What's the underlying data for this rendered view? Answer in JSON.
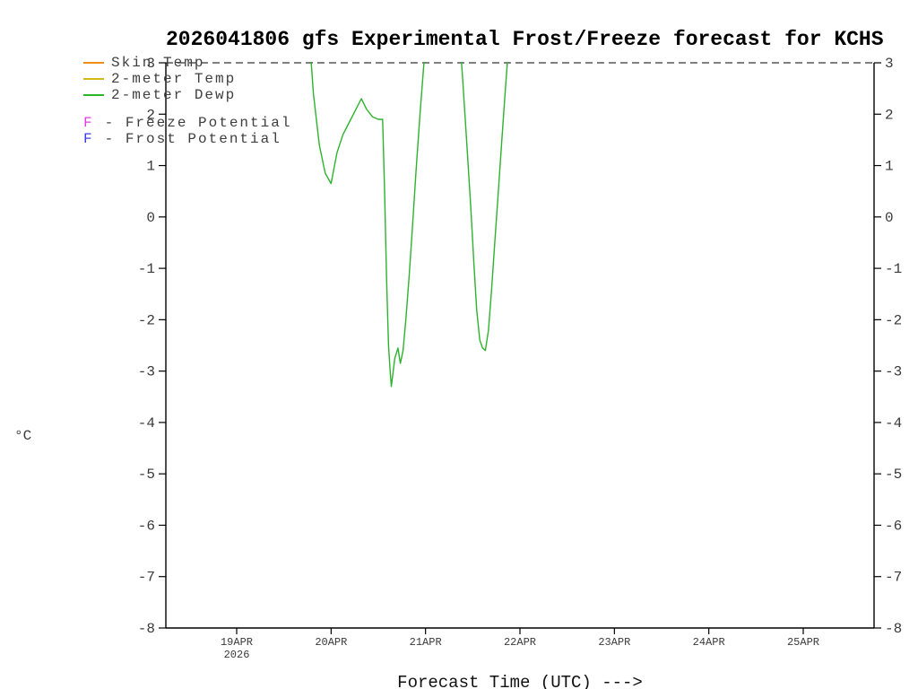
{
  "title": "2026041806 gfs Experimental Frost/Freeze forecast for KCHS",
  "legend": {
    "series": [
      {
        "label": "Skin Temp",
        "color": "#ef8e1f"
      },
      {
        "label": "2-meter Temp",
        "color": "#d3b91c"
      },
      {
        "label": "2-meter Dewp",
        "color": "#2db32d"
      }
    ],
    "potentials": [
      {
        "letter": "F",
        "label": "- Freeze Potential",
        "color": "#e23fe2"
      },
      {
        "letter": "F",
        "label": "- Frost Potential",
        "color": "#3c3ce8"
      }
    ]
  },
  "y_axis": {
    "unit_label": "°C"
  },
  "x_axis": {
    "label": "Forecast Time (UTC) --->"
  },
  "chart_data": {
    "type": "line",
    "title": "2026041806 gfs Experimental Frost/Freeze forecast for KCHS",
    "xlabel": "Forecast Time (UTC) --->",
    "ylabel": "°C",
    "ylim": [
      -8,
      3
    ],
    "y_tick_step": 1,
    "y_ticks": [
      3,
      2,
      1,
      0,
      -1,
      -2,
      -3,
      -4,
      -5,
      -6,
      -7,
      -8
    ],
    "x_axis_time": "hours since 2026-04-18 06 UTC (model run 2026041806)",
    "xlim": [
      0,
      180
    ],
    "x_ticks": [
      {
        "label": "19APR",
        "hour": 18,
        "year": "2026"
      },
      {
        "label": "20APR",
        "hour": 42
      },
      {
        "label": "21APR",
        "hour": 66
      },
      {
        "label": "22APR",
        "hour": 90
      },
      {
        "label": "23APR",
        "hour": 114
      },
      {
        "label": "24APR",
        "hour": 138
      },
      {
        "label": "25APR",
        "hour": 162
      }
    ],
    "grid": "dashed horizontal line at top (y=3) only; solid frame left/right/bottom",
    "legend_position": "top-left",
    "series": [
      {
        "name": "Skin Temp",
        "color": "#ef8e1f",
        "visible": false,
        "points": []
      },
      {
        "name": "2-meter Temp",
        "color": "#d3b91c",
        "visible": false,
        "points": []
      },
      {
        "name": "2-meter Dewp",
        "color": "#2db32d",
        "visible": true,
        "points": [
          [
            36.6,
            3.4
          ],
          [
            37.5,
            2.4
          ],
          [
            39.0,
            1.4
          ],
          [
            40.5,
            0.85
          ],
          [
            42.0,
            0.65
          ],
          [
            43.5,
            1.25
          ],
          [
            45.0,
            1.6
          ],
          [
            47.0,
            1.9
          ],
          [
            49.0,
            2.2
          ],
          [
            49.7,
            2.3
          ],
          [
            51.0,
            2.1
          ],
          [
            52.5,
            1.95
          ],
          [
            54.0,
            1.9
          ],
          [
            55.1,
            1.9
          ],
          [
            55.6,
            0.5
          ],
          [
            56.1,
            -1.2
          ],
          [
            56.6,
            -2.5
          ],
          [
            57.0,
            -3.0
          ],
          [
            57.3,
            -3.3
          ],
          [
            58.2,
            -2.75
          ],
          [
            59.0,
            -2.55
          ],
          [
            59.6,
            -2.85
          ],
          [
            60.3,
            -2.6
          ],
          [
            61.0,
            -2.0
          ],
          [
            61.8,
            -1.2
          ],
          [
            62.6,
            -0.3
          ],
          [
            63.6,
            0.9
          ],
          [
            64.6,
            2.0
          ],
          [
            65.6,
            3.0
          ],
          [
            66.0,
            3.4
          ],
          [
            74.8,
            3.4
          ],
          [
            75.5,
            2.6
          ],
          [
            76.5,
            1.4
          ],
          [
            77.5,
            0.2
          ],
          [
            78.3,
            -0.9
          ],
          [
            79.0,
            -1.8
          ],
          [
            79.8,
            -2.4
          ],
          [
            80.5,
            -2.55
          ],
          [
            81.2,
            -2.6
          ],
          [
            82.0,
            -2.2
          ],
          [
            82.8,
            -1.4
          ],
          [
            83.6,
            -0.5
          ],
          [
            84.5,
            0.5
          ],
          [
            85.4,
            1.5
          ],
          [
            86.3,
            2.5
          ],
          [
            87.0,
            3.2
          ],
          [
            87.3,
            3.4
          ]
        ]
      }
    ]
  }
}
